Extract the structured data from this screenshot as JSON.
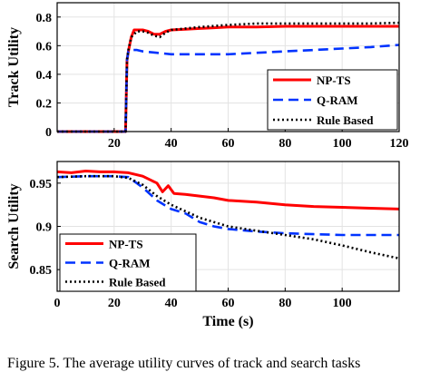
{
  "caption": "Figure 5.    The average utility curves of track and search tasks",
  "chart_data": [
    {
      "type": "line",
      "title": "",
      "xlabel": "",
      "ylabel": "Track Utility",
      "xlim": [
        0,
        120
      ],
      "ylim": [
        0,
        0.9
      ],
      "xticks": [
        20,
        40,
        60,
        80,
        100,
        120
      ],
      "yticks": [
        0,
        0.2,
        0.4,
        0.6,
        0.8
      ],
      "grid": true,
      "legend_position": "bottom-right",
      "series": [
        {
          "name": "NP-TS",
          "color": "#ff0000",
          "style": "solid",
          "x": [
            0,
            24,
            24.5,
            25,
            26,
            27,
            28,
            30,
            32,
            34,
            36,
            38,
            40,
            45,
            50,
            55,
            60,
            70,
            80,
            90,
            100,
            110,
            120
          ],
          "y": [
            0,
            0,
            0.5,
            0.56,
            0.66,
            0.71,
            0.71,
            0.71,
            0.7,
            0.68,
            0.68,
            0.7,
            0.71,
            0.715,
            0.72,
            0.725,
            0.73,
            0.73,
            0.735,
            0.735,
            0.735,
            0.735,
            0.735
          ]
        },
        {
          "name": "Q-RAM",
          "color": "#0033ff",
          "style": "dashed",
          "x": [
            0,
            24,
            24.5,
            25,
            26,
            28,
            30,
            35,
            40,
            50,
            60,
            70,
            80,
            90,
            100,
            110,
            120
          ],
          "y": [
            0,
            0,
            0.5,
            0.56,
            0.57,
            0.57,
            0.56,
            0.55,
            0.54,
            0.54,
            0.54,
            0.55,
            0.56,
            0.57,
            0.58,
            0.59,
            0.605
          ]
        },
        {
          "name": "Rule Based",
          "color": "#000000",
          "style": "dotted",
          "x": [
            0,
            24,
            24.5,
            25,
            26,
            28,
            30,
            32,
            34,
            36,
            38,
            40,
            45,
            50,
            60,
            70,
            80,
            90,
            100,
            110,
            120
          ],
          "y": [
            0,
            0,
            0.5,
            0.57,
            0.66,
            0.7,
            0.7,
            0.69,
            0.67,
            0.66,
            0.69,
            0.71,
            0.72,
            0.73,
            0.745,
            0.755,
            0.755,
            0.755,
            0.755,
            0.755,
            0.76
          ]
        }
      ]
    },
    {
      "type": "line",
      "title": "",
      "xlabel": "Time (s)",
      "ylabel": "Search Utility",
      "xlim": [
        0,
        120
      ],
      "ylim": [
        0.825,
        0.975
      ],
      "xticks": [
        0,
        20,
        40,
        60,
        80,
        100
      ],
      "yticks": [
        0.85,
        0.9,
        0.95
      ],
      "grid": true,
      "legend_position": "bottom-left",
      "series": [
        {
          "name": "NP-TS",
          "color": "#ff0000",
          "style": "solid",
          "x": [
            0,
            5,
            10,
            15,
            20,
            25,
            30,
            35,
            37,
            39,
            41,
            45,
            50,
            55,
            60,
            70,
            80,
            90,
            100,
            110,
            120
          ],
          "y": [
            0.963,
            0.962,
            0.964,
            0.963,
            0.963,
            0.962,
            0.958,
            0.95,
            0.94,
            0.947,
            0.938,
            0.937,
            0.935,
            0.933,
            0.93,
            0.928,
            0.925,
            0.923,
            0.922,
            0.921,
            0.92
          ]
        },
        {
          "name": "Q-RAM",
          "color": "#0033ff",
          "style": "dashed",
          "x": [
            0,
            10,
            20,
            25,
            30,
            35,
            40,
            45,
            50,
            55,
            60,
            70,
            80,
            90,
            100,
            110,
            120
          ],
          "y": [
            0.957,
            0.958,
            0.958,
            0.957,
            0.945,
            0.93,
            0.92,
            0.915,
            0.905,
            0.9,
            0.897,
            0.894,
            0.892,
            0.891,
            0.89,
            0.89,
            0.89
          ]
        },
        {
          "name": "Rule Based",
          "color": "#000000",
          "style": "dotted",
          "x": [
            0,
            10,
            20,
            25,
            30,
            35,
            40,
            50,
            60,
            70,
            80,
            90,
            100,
            110,
            120
          ],
          "y": [
            0.957,
            0.958,
            0.958,
            0.956,
            0.948,
            0.935,
            0.925,
            0.91,
            0.9,
            0.895,
            0.89,
            0.885,
            0.878,
            0.87,
            0.863
          ]
        }
      ]
    }
  ]
}
